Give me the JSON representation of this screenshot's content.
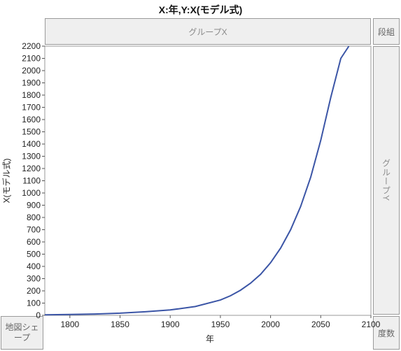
{
  "title": "X:年,Y:X(モデル式)",
  "zones": {
    "group_x": "グループX",
    "wrap": "段組",
    "group_y": "グループY",
    "map_shape": "地図シェープ",
    "frequency": "度数"
  },
  "chart_data": {
    "type": "line",
    "title": "X:年,Y:X(モデル式)",
    "xlabel": "年",
    "ylabel": "X(モデル式)",
    "xlim": [
      1775,
      2100
    ],
    "ylim": [
      0,
      2200
    ],
    "x_ticks": [
      1800,
      1850,
      1900,
      1950,
      2000,
      2050,
      2100
    ],
    "y_ticks": [
      0,
      100,
      200,
      300,
      400,
      500,
      600,
      700,
      800,
      900,
      1000,
      1100,
      1200,
      1300,
      1400,
      1500,
      1600,
      1700,
      1800,
      1900,
      2000,
      2100,
      2200
    ],
    "grid": false,
    "line_color": "#3b55a6",
    "series": [
      {
        "x": [
          1775,
          1800,
          1825,
          1850,
          1875,
          1900,
          1925,
          1950,
          1960,
          1970,
          1980,
          1990,
          2000,
          2010,
          2020,
          2030,
          2040,
          2050,
          2060,
          2070,
          2078
        ],
        "values": [
          4,
          7,
          11,
          18,
          29,
          44,
          72,
          125,
          160,
          205,
          262,
          335,
          430,
          550,
          700,
          890,
          1130,
          1430,
          1780,
          2100,
          2200
        ]
      }
    ]
  }
}
